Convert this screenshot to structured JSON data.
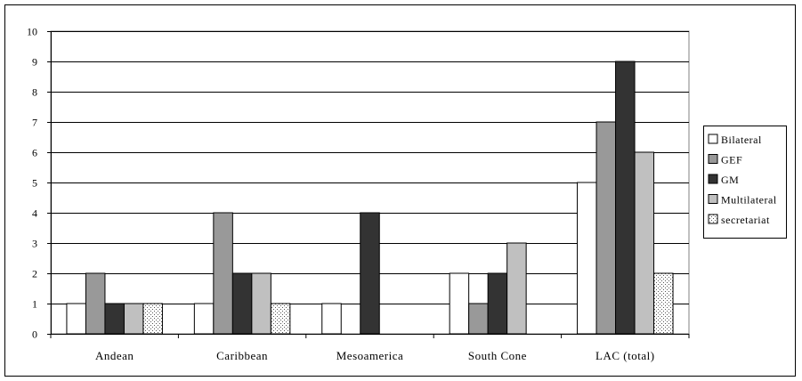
{
  "chart_data": {
    "type": "bar",
    "categories": [
      "Andean",
      "Caribbean",
      "Mesoamerica",
      "South Cone",
      "LAC (total)"
    ],
    "series": [
      {
        "name": "Bilateral",
        "color": "#ffffff",
        "pattern": "none",
        "values": [
          1,
          1,
          1,
          2,
          5
        ]
      },
      {
        "name": "GEF",
        "color": "#999999",
        "pattern": "none",
        "values": [
          2,
          4,
          0,
          1,
          7
        ]
      },
      {
        "name": "GM",
        "color": "#333333",
        "pattern": "none",
        "values": [
          1,
          2,
          4,
          2,
          9
        ]
      },
      {
        "name": "Multilateral",
        "color": "#c0c0c0",
        "pattern": "none",
        "values": [
          1,
          2,
          0,
          3,
          6
        ]
      },
      {
        "name": "secretariat",
        "color": "#ffffff",
        "pattern": "dots",
        "values": [
          1,
          1,
          0,
          0,
          2
        ]
      }
    ],
    "title": "",
    "xlabel": "",
    "ylabel": "",
    "ylim": [
      0,
      10
    ],
    "yticks": [
      "0",
      "1",
      "2",
      "3",
      "4",
      "5",
      "6",
      "7",
      "8",
      "9",
      "10"
    ],
    "grid": true,
    "legend": "right"
  }
}
